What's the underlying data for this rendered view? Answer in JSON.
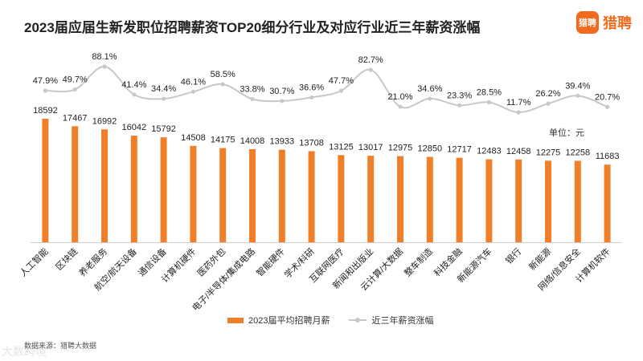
{
  "header": {
    "title": "2023届应届生新发职位招聘薪资TOP20细分行业及对应行业近三年薪资涨幅"
  },
  "logo": {
    "mark": "猎聘",
    "text": "猎聘",
    "brand_color": "#f26b1d"
  },
  "unit_label": "单位：元",
  "legend": {
    "bar_label": "2023届平均招聘月薪",
    "line_label": "近三年薪资涨幅"
  },
  "source": "数据来源：猎聘大数据",
  "watermark": "大数跨境",
  "colors": {
    "bar": "#f07f2a",
    "line": "#c8c8c8",
    "text": "#222222"
  },
  "chart_data": {
    "type": "bar",
    "title": "2023届应届生新发职位招聘薪资TOP20细分行业及对应行业近三年薪资涨幅",
    "categories": [
      "人工智能",
      "区块链",
      "养老服务",
      "航空/航天设备",
      "通信设备",
      "计算机硬件",
      "医药外包",
      "电子/半导体/集成电路",
      "智能硬件",
      "学术/科研",
      "互联网医疗",
      "新闻和出版业",
      "云计算/大数据",
      "整车制造",
      "科技金融",
      "新能源汽车",
      "银行",
      "新能源",
      "网络/信息安全",
      "计算机软件"
    ],
    "series": [
      {
        "name": "2023届平均招聘月薪",
        "type": "bar",
        "values": [
          18592,
          17467,
          16992,
          16042,
          15792,
          14508,
          14175,
          14008,
          13933,
          13708,
          13125,
          13017,
          12975,
          12850,
          12717,
          12483,
          12458,
          12275,
          12258,
          11683
        ]
      },
      {
        "name": "近三年薪资涨幅",
        "type": "line",
        "unit": "%",
        "values": [
          47.9,
          49.7,
          88.1,
          41.4,
          34.4,
          46.1,
          58.5,
          33.8,
          30.7,
          36.6,
          47.7,
          82.7,
          21.0,
          34.6,
          23.3,
          28.5,
          11.7,
          26.2,
          39.4,
          20.7
        ]
      }
    ],
    "value_labels": [
      "18592",
      "17467",
      "16992",
      "16042",
      "15792",
      "14508",
      "14175",
      "14008",
      "13933",
      "13708",
      "13125",
      "13017",
      "12975",
      "12850",
      "12717",
      "12483",
      "12458",
      "12275",
      "12258",
      "11683"
    ],
    "pct_labels": [
      "47.9%",
      "49.7%",
      "88.1%",
      "41.4%",
      "34.4%",
      "46.1%",
      "58.5%",
      "33.8%",
      "30.7%",
      "36.6%",
      "47.7%",
      "82.7%",
      "21.0%",
      "34.6%",
      "23.3%",
      "28.5%",
      "11.7%",
      "26.2%",
      "39.4%",
      "20.7%"
    ],
    "bar_ylim": [
      0,
      18592
    ],
    "grid": false
  }
}
